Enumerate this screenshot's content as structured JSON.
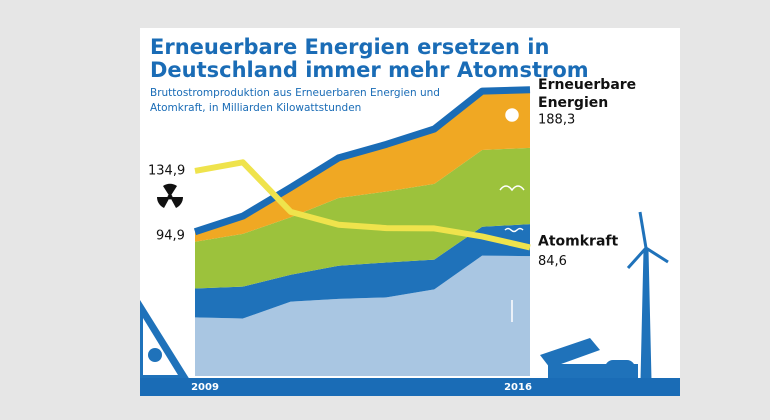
{
  "chart_data": {
    "type": "area",
    "stacked": true,
    "title": "Erneuerbare Energien ersetzen in Deutschland immer mehr Atomstrom",
    "subtitle": "Bruttostromproduktion aus Erneuerbaren Energien und Atomkraft, in Milliarden Kilowattstunden",
    "categories": [
      "2009",
      null,
      null,
      null,
      null,
      null,
      null,
      "2016"
    ],
    "series": [
      {
        "color": "#a9c6e2",
        "values": [
          38.6,
          37.8,
          48.9,
          50.7,
          51.7,
          57.0,
          79.2,
          78.9
        ]
      },
      {
        "color": "#1f72ba",
        "values": [
          19.0,
          21.0,
          17.7,
          21.8,
          23.0,
          19.6,
          19.0,
          21.0
        ]
      },
      {
        "color": "#9cc23c",
        "values": [
          30.7,
          34.7,
          37.8,
          44.6,
          46.7,
          49.8,
          50.5,
          50.2
        ]
      },
      {
        "color": "#f0a823",
        "values": [
          6.6,
          11.7,
          19.6,
          26.4,
          31.0,
          36.1,
          38.7,
          38.2
        ]
      },
      {
        "name": "Atomkraft",
        "type": "line",
        "color": "#efe34c",
        "values": [
          134.9,
          140.6,
          108.0,
          99.5,
          97.3,
          97.1,
          91.8,
          84.6
        ],
        "value_labels": [
          "134,9",
          null,
          null,
          null,
          null,
          null,
          null,
          "84,6"
        ]
      }
    ],
    "stack_label": "Erneuerbare Energien",
    "stack_outline_color": "#1a6cb6",
    "annotations": [
      {
        "label": "94,9",
        "value": 94.9
      },
      {
        "label": "188,3",
        "value": 188.3
      }
    ],
    "ylim": [
      0,
      200
    ]
  }
}
